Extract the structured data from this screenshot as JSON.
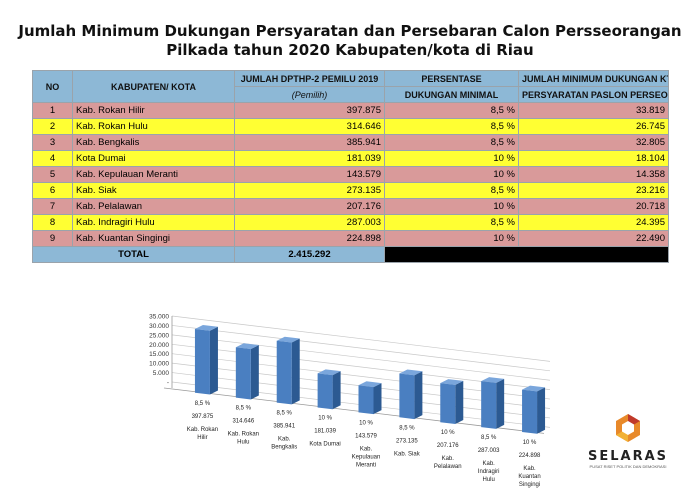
{
  "title_line1": "Jumlah Minimum Dukungan Persyaratan dan Persebaran Calon Persseorangan",
  "title_line2": "Pilkada tahun 2020 Kabupaten/kota di Riau",
  "table": {
    "headers": {
      "no": "NO",
      "kab": "KABUPATEN/ KOTA",
      "dpt": "JUMLAH DPTHP-2 PEMILU 2019",
      "dpt_sub": "(Pemilih)",
      "pers": "PERSENTASE",
      "pers_sub": "DUKUNGAN MINIMAL",
      "min": "JUMLAH MINIMUM DUKUNGAN KTP",
      "min_sub": "PERSYARATAN PASLON PERSEORANGAN"
    },
    "rows": [
      {
        "no": "1",
        "kab": "Kab. Rokan Hilir",
        "dpt": "397.875",
        "pct": "8,5 %",
        "min": "33.819"
      },
      {
        "no": "2",
        "kab": "Kab. Rokan Hulu",
        "dpt": "314.646",
        "pct": "8,5 %",
        "min": "26.745"
      },
      {
        "no": "3",
        "kab": "Kab. Bengkalis",
        "dpt": "385.941",
        "pct": "8,5 %",
        "min": "32.805"
      },
      {
        "no": "4",
        "kab": "Kota Dumai",
        "dpt": "181.039",
        "pct": "10 %",
        "min": "18.104"
      },
      {
        "no": "5",
        "kab": "Kab. Kepulauan Meranti",
        "dpt": "143.579",
        "pct": "10 %",
        "min": "14.358"
      },
      {
        "no": "6",
        "kab": "Kab. Siak",
        "dpt": "273.135",
        "pct": "8,5 %",
        "min": "23.216"
      },
      {
        "no": "7",
        "kab": "Kab. Pelalawan",
        "dpt": "207.176",
        "pct": "10 %",
        "min": "20.718"
      },
      {
        "no": "8",
        "kab": "Kab. Indragiri Hulu",
        "dpt": "287.003",
        "pct": "8,5 %",
        "min": "24.395"
      },
      {
        "no": "9",
        "kab": "Kab. Kuantan Singingi",
        "dpt": "224.898",
        "pct": "10 %",
        "min": "22.490"
      }
    ],
    "total_label": "TOTAL",
    "total_value": "2.415.292",
    "colors": {
      "pink": "#d99a9a",
      "yellow": "#ffff33",
      "header": "#8db8d6"
    }
  },
  "chart_data": {
    "type": "bar",
    "categories": [
      [
        "Kab. Rokan",
        "Hilir"
      ],
      [
        "Kab. Rokan",
        "Hulu"
      ],
      [
        "Kab.",
        "Bengkalis"
      ],
      [
        "Kota Dumai"
      ],
      [
        "Kab.",
        "Kepulauan",
        "Meranti"
      ],
      [
        "Kab. Siak"
      ],
      [
        "Kab.",
        "Pelalawan"
      ],
      [
        "Kab.",
        "Indragiri",
        "Hulu"
      ],
      [
        "Kab.",
        "Kuantan",
        "Singingi"
      ]
    ],
    "values": [
      33819,
      26745,
      32805,
      18104,
      14358,
      23216,
      20718,
      24395,
      22490
    ],
    "pct_labels": [
      "8,5 %",
      "8,5 %",
      "8,5 %",
      "10 %",
      "10 %",
      "8,5 %",
      "10 %",
      "8,5 %",
      "10 %"
    ],
    "dpt_labels": [
      "397.875",
      "314.646",
      "385.941",
      "181.039",
      "143.579",
      "273.135",
      "207.176",
      "287.003",
      "224.898"
    ],
    "yticks": [
      "35.000",
      "30.000",
      "25.000",
      "20.000",
      "15.000",
      "10.000",
      "5.000",
      "-"
    ],
    "ylim": [
      0,
      35000
    ],
    "grid": true,
    "bar_color": "#4a7fc1"
  },
  "logo": {
    "name": "SELARAS",
    "tagline": "PUSAT RISET POLITIK DAN DEMOKRASI"
  }
}
